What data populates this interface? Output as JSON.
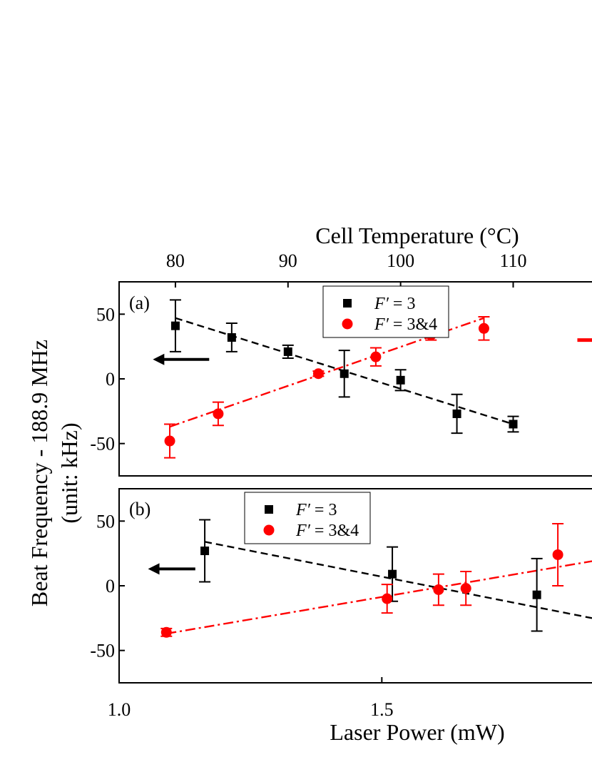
{
  "chart_data": [
    {
      "type": "scatter",
      "panel_label": "(a)",
      "top_axis": {
        "label": "Cell Temperature (°C)",
        "ticks": [
          80,
          90,
          100,
          110
        ],
        "tick_labels": [
          "80",
          "90",
          "100",
          "110"
        ],
        "range": [
          75,
          117
        ]
      },
      "x_axis": {
        "range": [
          75,
          117
        ]
      },
      "y_axis": {
        "ticks": [
          50,
          0,
          -50
        ],
        "tick_labels": [
          "50",
          "0",
          "-50"
        ],
        "range": [
          -75,
          75
        ]
      },
      "series": [
        {
          "name": "F′ = 3",
          "marker": "square",
          "color": "#000000",
          "points": [
            {
              "x": 80,
              "y": 41,
              "err": 20
            },
            {
              "x": 85,
              "y": 32,
              "err": 11
            },
            {
              "x": 90,
              "y": 21,
              "err": 5
            },
            {
              "x": 95,
              "y": 4,
              "err": 18
            },
            {
              "x": 100,
              "y": -1,
              "err": 8
            },
            {
              "x": 105,
              "y": -27,
              "err": 15
            },
            {
              "x": 110,
              "y": -35,
              "err": 6
            }
          ],
          "fit": {
            "style": "dashed",
            "x": [
              80,
              110
            ],
            "y": [
              47,
              -35
            ]
          }
        },
        {
          "name": "F′ = 3&4",
          "marker": "circle",
          "color": "#ff0000",
          "points": [
            {
              "x": 79.5,
              "y": -48,
              "err": 13
            },
            {
              "x": 83.8,
              "y": -27,
              "err": 9
            },
            {
              "x": 92.7,
              "y": 4,
              "err": 2
            },
            {
              "x": 97.8,
              "y": 17,
              "err": 7
            },
            {
              "x": 102.7,
              "y": 34,
              "err": 4
            },
            {
              "x": 107.4,
              "y": 39,
              "err": 9
            }
          ],
          "fit": {
            "style": "dash-dot",
            "x": [
              79.5,
              107.4
            ],
            "y": [
              -37,
              47
            ]
          }
        }
      ],
      "annotations": [
        {
          "shape": "arrow-left",
          "color": "#000000",
          "x": [
            78,
            83
          ],
          "y": 15
        },
        {
          "shape": "line",
          "color": "#ff0000",
          "x": [
            115.7,
            117
          ],
          "y": 30
        }
      ],
      "legend": "top-center"
    },
    {
      "type": "scatter",
      "panel_label": "(b)",
      "x_axis": {
        "label": "Laser Power (mW)",
        "ticks": [
          1.0,
          1.5
        ],
        "tick_labels": [
          "1.0",
          "1.5"
        ],
        "range": [
          1.0,
          1.9
        ]
      },
      "y_axis": {
        "ticks": [
          50,
          0,
          -50
        ],
        "tick_labels": [
          "50",
          "0",
          "-50"
        ],
        "range": [
          -75,
          75
        ]
      },
      "series": [
        {
          "name": "F′ = 3",
          "marker": "square",
          "color": "#000000",
          "points": [
            {
              "x": 1.163,
              "y": 27,
              "err": 24
            },
            {
              "x": 1.52,
              "y": 9,
              "err": 21
            },
            {
              "x": 1.795,
              "y": -7,
              "err": 28
            }
          ],
          "fit": {
            "style": "dashed",
            "x": [
              1.163,
              1.9
            ],
            "y": [
              34,
              -25
            ]
          }
        },
        {
          "name": "F′ = 3&4",
          "marker": "circle",
          "color": "#ff0000",
          "points": [
            {
              "x": 1.09,
              "y": -36,
              "err": 3
            },
            {
              "x": 1.51,
              "y": -10,
              "err": 11
            },
            {
              "x": 1.608,
              "y": -3,
              "err": 12
            },
            {
              "x": 1.66,
              "y": -2,
              "err": 13
            },
            {
              "x": 1.835,
              "y": 24,
              "err": 24
            }
          ],
          "fit": {
            "style": "dash-dot",
            "x": [
              1.09,
              1.9
            ],
            "y": [
              -37,
              19
            ]
          }
        }
      ],
      "annotations": [
        {
          "shape": "arrow-left",
          "color": "#000000",
          "x": [
            1.055,
            1.145
          ],
          "y": 13
        }
      ],
      "legend": "top-left"
    }
  ],
  "shared_y_label_line1": "Beat Frequency - 188.9 MHz",
  "shared_y_label_line2": "(unit: kHz)"
}
